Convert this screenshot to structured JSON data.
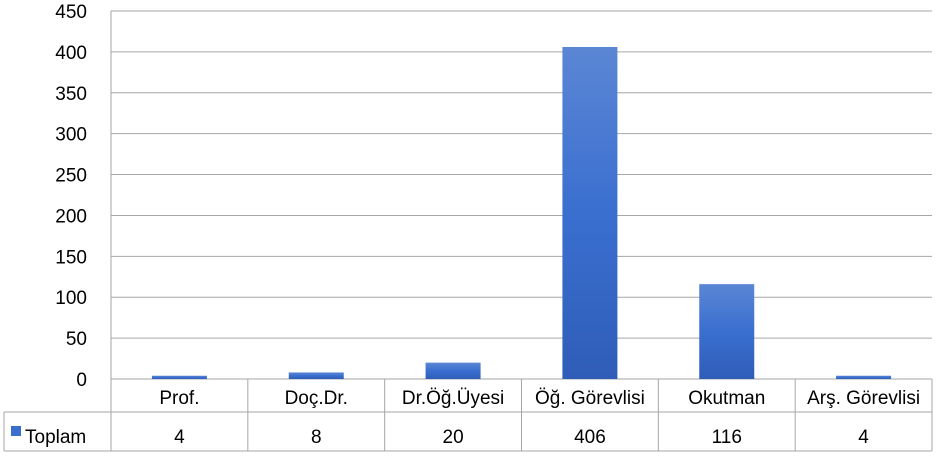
{
  "chart_data": {
    "type": "bar",
    "categories": [
      "Prof.",
      "Doç.Dr.",
      "Dr.Öğ.Üyesi",
      "Öğ. Görevlisi",
      "Okutman",
      "Arş. Görevlisi"
    ],
    "series": [
      {
        "name": "Toplam",
        "values": [
          4,
          8,
          20,
          406,
          116,
          4
        ],
        "color": "#3a6fd0"
      }
    ],
    "y_ticks": [
      "0",
      "50",
      "100",
      "150",
      "200",
      "250",
      "300",
      "350",
      "400",
      "450"
    ],
    "ylim": [
      0,
      450
    ],
    "grid": true,
    "data_table": true
  }
}
